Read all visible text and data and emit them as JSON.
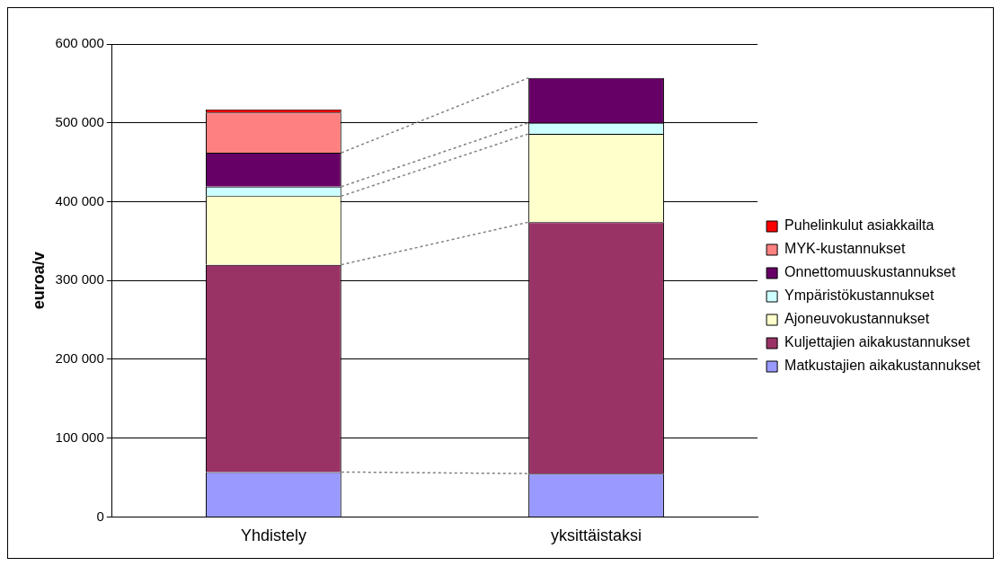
{
  "chart_data": {
    "type": "bar",
    "stacked": true,
    "ylabel": "euroa/v",
    "categories": [
      "Yhdistely",
      "yksittäistaksi"
    ],
    "series": [
      {
        "name": "Matkustajien aikakustannukset",
        "color": "#9999ff",
        "values": [
          57000,
          55000
        ]
      },
      {
        "name": "Kuljettajien aikakustannukset",
        "color": "#993366",
        "values": [
          263000,
          319000
        ]
      },
      {
        "name": "Ajoneuvokustannukset",
        "color": "#ffffcc",
        "values": [
          87000,
          112000
        ]
      },
      {
        "name": "Ympäristökustannukset",
        "color": "#ccffff",
        "values": [
          12000,
          14000
        ]
      },
      {
        "name": "Onnettomuuskustannukset",
        "color": "#660066",
        "values": [
          43000,
          57000
        ]
      },
      {
        "name": "MYK-kustannukset",
        "color": "#ff8080",
        "values": [
          51000,
          0
        ]
      },
      {
        "name": "Puhelinkulut asiakkailta",
        "color": "#ff0000",
        "values": [
          4000,
          0
        ]
      }
    ],
    "ylim": [
      0,
      600000
    ],
    "yticks": [
      0,
      {
        "value": 100000,
        "label": "100 000"
      },
      {
        "value": 200000,
        "label": "200 000"
      },
      {
        "value": 300000,
        "label": "300 000"
      },
      {
        "value": 400000,
        "label": "400 000"
      },
      {
        "value": 500000,
        "label": "500 000"
      },
      {
        "value": 600000,
        "label": "600 000"
      }
    ],
    "grid": "y",
    "legend": "right"
  }
}
